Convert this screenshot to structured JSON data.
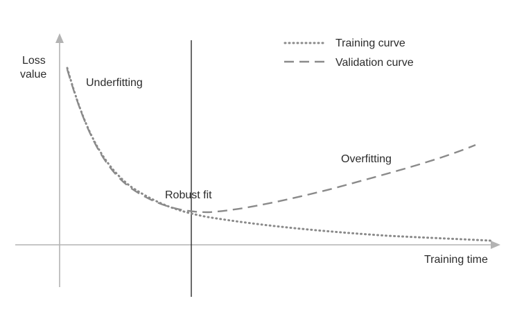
{
  "axes": {
    "y_label_line1": "Loss",
    "y_label_line2": "value",
    "x_label": "Training time"
  },
  "legend": {
    "training": "Training curve",
    "validation": "Validation curve"
  },
  "regions": {
    "underfitting": "Underfitting",
    "robust_fit": "Robust fit",
    "overfitting": "Overfitting"
  },
  "colors": {
    "axis": "#b3b3b3",
    "curve": "#8a8a8a",
    "divider": "#1a1a1a",
    "text": "#2b2b2b"
  }
}
